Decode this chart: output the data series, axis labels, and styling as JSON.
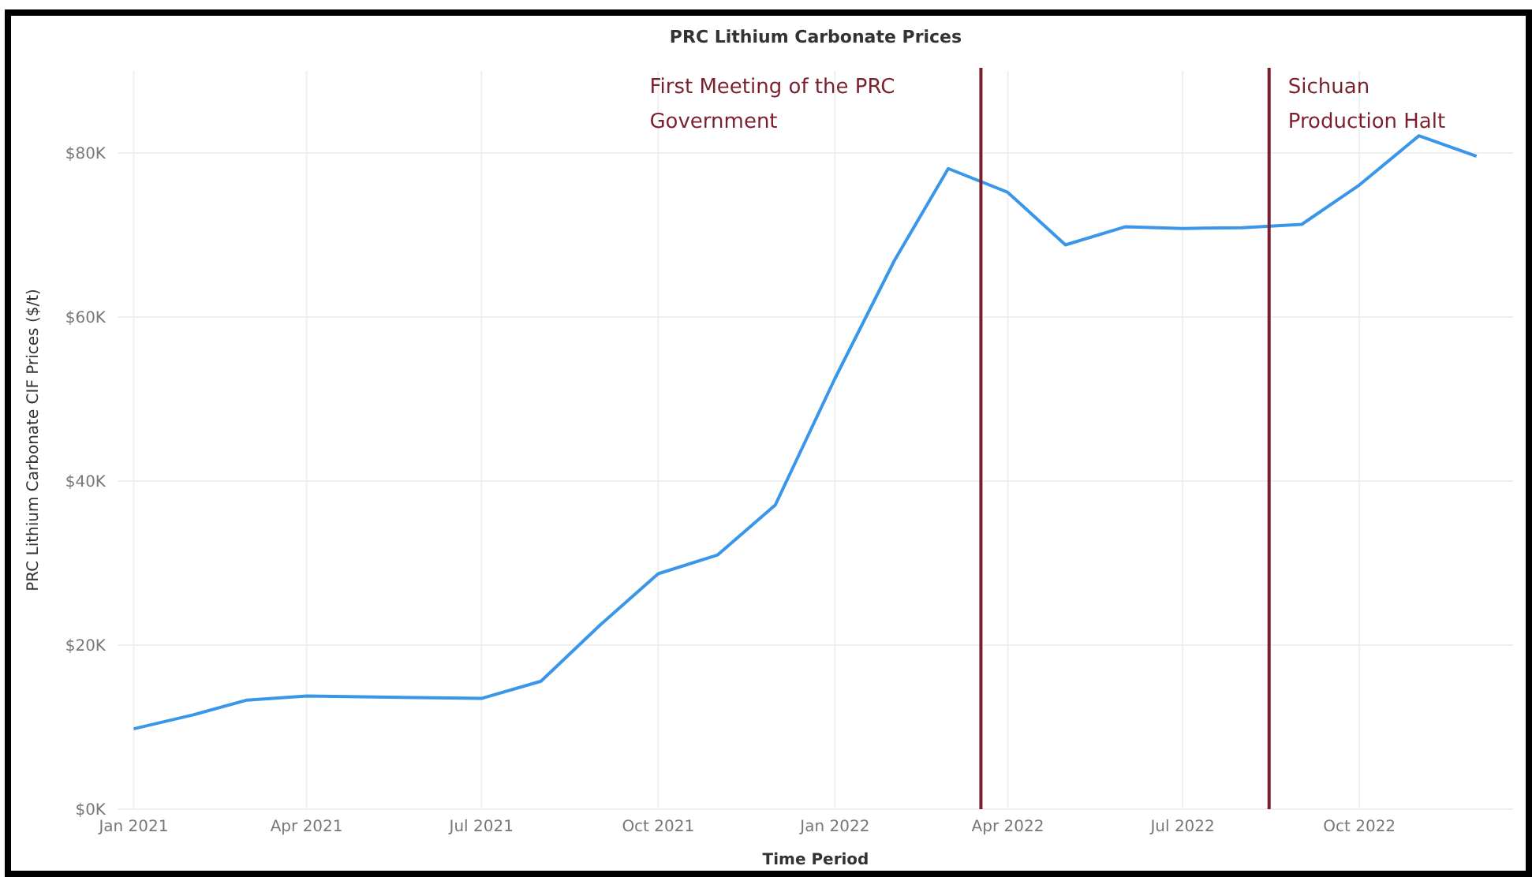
{
  "chart_data": {
    "type": "line",
    "title": "PRC Lithium Carbonate Prices",
    "xlabel": "Time Period",
    "ylabel": "PRC Lithium Carbonate CIF Prices ($/t)",
    "x": [
      "2021-01-01",
      "2021-02-01",
      "2021-03-01",
      "2021-04-01",
      "2021-07-01",
      "2021-08-01",
      "2021-09-01",
      "2021-10-01",
      "2021-11-01",
      "2021-12-01",
      "2022-01-01",
      "2022-02-01",
      "2022-03-01",
      "2022-04-01",
      "2022-05-01",
      "2022-06-01",
      "2022-07-01",
      "2022-08-01",
      "2022-09-01",
      "2022-10-01",
      "2022-11-01",
      "2022-12-01"
    ],
    "series": [
      {
        "color": "#3a96e8",
        "values": [
          9800,
          11500,
          13300,
          13800,
          13500,
          15600,
          22500,
          28700,
          31000,
          37100,
          52500,
          66900,
          78100,
          75200,
          68800,
          71000,
          70800,
          70900,
          71300,
          76100,
          82100,
          79600
        ]
      }
    ],
    "xlim": [
      "2020-12-24",
      "2022-12-20"
    ],
    "xticks": [
      {
        "value": "2021-01-01",
        "label": "Jan 2021"
      },
      {
        "value": "2021-04-01",
        "label": "Apr 2021"
      },
      {
        "value": "2021-07-01",
        "label": "Jul 2021"
      },
      {
        "value": "2021-10-01",
        "label": "Oct 2021"
      },
      {
        "value": "2022-01-01",
        "label": "Jan 2022"
      },
      {
        "value": "2022-04-01",
        "label": "Apr 2022"
      },
      {
        "value": "2022-07-01",
        "label": "Jul 2022"
      },
      {
        "value": "2022-10-01",
        "label": "Oct 2022"
      }
    ],
    "ylim": [
      0,
      90000
    ],
    "yticks": [
      {
        "value": 0,
        "label": "$0K"
      },
      {
        "value": 20000,
        "label": "$20K"
      },
      {
        "value": 40000,
        "label": "$40K"
      },
      {
        "value": 60000,
        "label": "$60K"
      },
      {
        "value": 80000,
        "label": "$80K"
      }
    ],
    "ref_lines": [
      {
        "axis": "x",
        "value": "2022-03-18",
        "label": "First Meeting of the PRC Government",
        "color": "#7a1f2b"
      },
      {
        "axis": "x",
        "value": "2022-08-15",
        "label": "Sichuan Production Halt",
        "color": "#7a1f2b"
      }
    ],
    "grid": true,
    "marker": "none",
    "line_style": "solid"
  }
}
